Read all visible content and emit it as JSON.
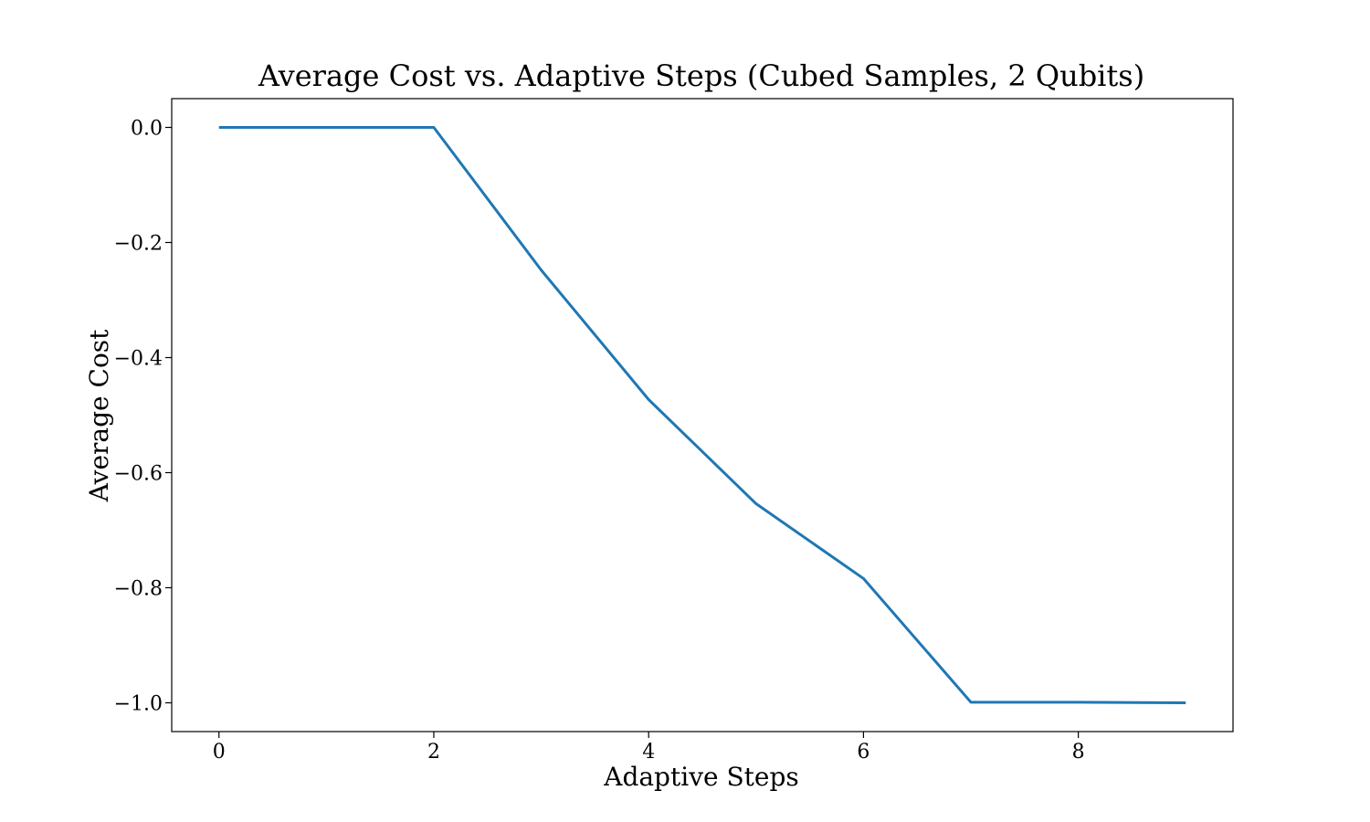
{
  "chart_data": {
    "type": "line",
    "title": "Average Cost vs. Adaptive Steps (Cubed Samples, 2 Qubits)",
    "xlabel": "Adaptive Steps",
    "ylabel": "Average Cost",
    "xlim": [
      -0.44,
      9.44
    ],
    "ylim": [
      -1.05,
      0.05
    ],
    "x_ticks": [
      0,
      2,
      4,
      6,
      8
    ],
    "x_tick_labels": [
      "0",
      "2",
      "4",
      "6",
      "8"
    ],
    "y_ticks": [
      0.0,
      -0.2,
      -0.4,
      -0.6,
      -0.8,
      -1.0
    ],
    "y_tick_labels": [
      "0.0",
      "−0.2",
      "−0.4",
      "−0.6",
      "−0.8",
      "−1.0"
    ],
    "grid": false,
    "series": [
      {
        "color": "#1f77b4",
        "x": [
          0,
          1,
          2,
          3,
          4,
          5,
          6,
          7,
          8,
          9
        ],
        "y": [
          0.0,
          0.0,
          0.0,
          -0.248,
          -0.473,
          -0.654,
          -0.784,
          -0.999,
          -0.999,
          -1.0
        ]
      }
    ]
  }
}
